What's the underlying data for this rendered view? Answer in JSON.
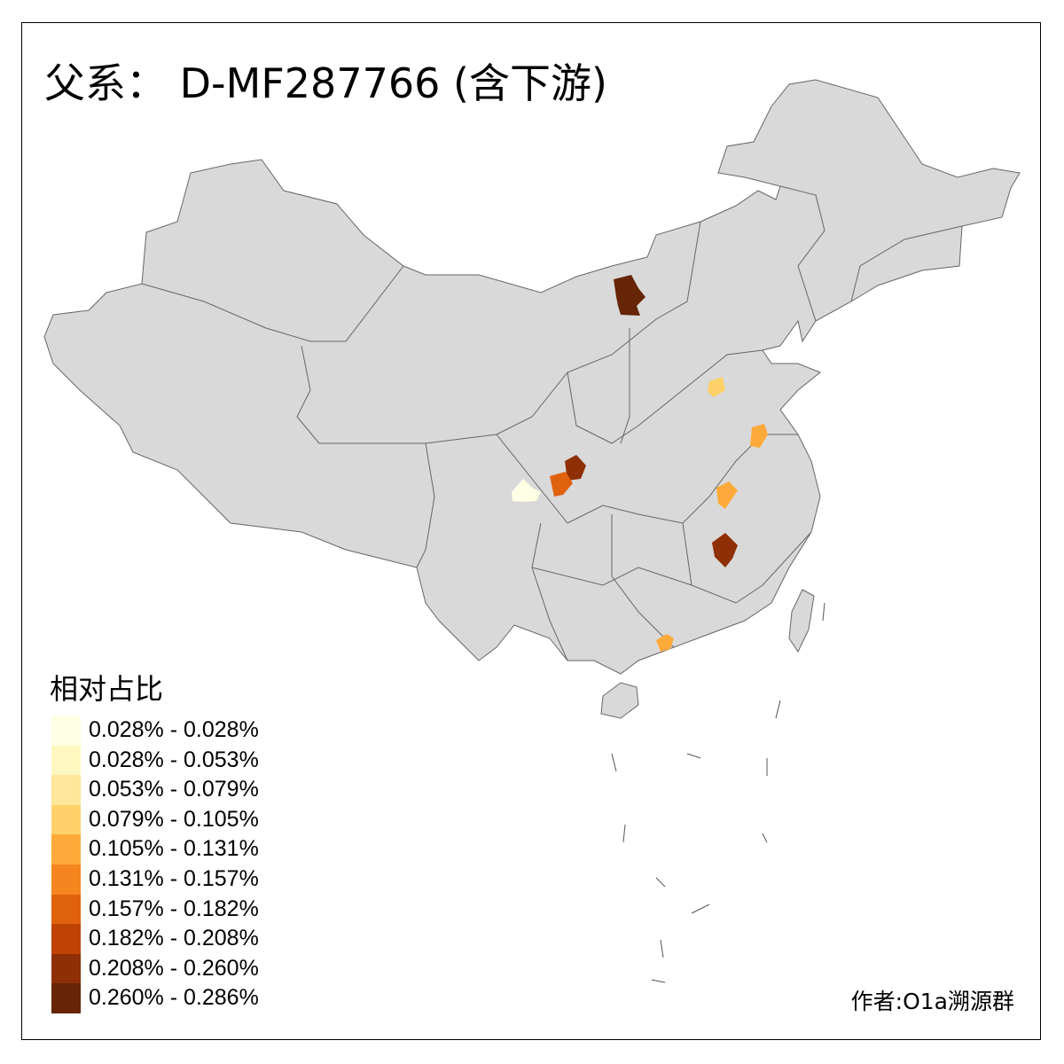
{
  "title": "父系： D-MF287766 (含下游)",
  "legend": {
    "title": "相对占比",
    "classes": [
      {
        "label": "0.028% - 0.028%",
        "color": "#FFFFE5"
      },
      {
        "label": "0.028% - 0.053%",
        "color": "#FFF7C0"
      },
      {
        "label": "0.053% - 0.079%",
        "color": "#FEE69A"
      },
      {
        "label": "0.079% - 0.105%",
        "color": "#FED16A"
      },
      {
        "label": "0.105% - 0.131%",
        "color": "#FEAA3A"
      },
      {
        "label": "0.131% - 0.157%",
        "color": "#F5861F"
      },
      {
        "label": "0.157% - 0.182%",
        "color": "#E0620E"
      },
      {
        "label": "0.182% - 0.208%",
        "color": "#BF4404"
      },
      {
        "label": "0.208% - 0.260%",
        "color": "#8E2F05"
      },
      {
        "label": "0.260% - 0.286%",
        "color": "#662506"
      }
    ]
  },
  "map": {
    "base_color": "#D9D9D9",
    "border_color": "#666666",
    "highlighted_regions": [
      {
        "id": "r1",
        "class_index": 9
      },
      {
        "id": "r2",
        "class_index": 3
      },
      {
        "id": "r3",
        "class_index": 4
      },
      {
        "id": "r4",
        "class_index": 4
      },
      {
        "id": "r5",
        "class_index": 8
      },
      {
        "id": "r6",
        "class_index": 8
      },
      {
        "id": "r7",
        "class_index": 6
      },
      {
        "id": "r8",
        "class_index": 0
      },
      {
        "id": "r9",
        "class_index": 4
      }
    ]
  },
  "author": "作者:O1a溯源群"
}
